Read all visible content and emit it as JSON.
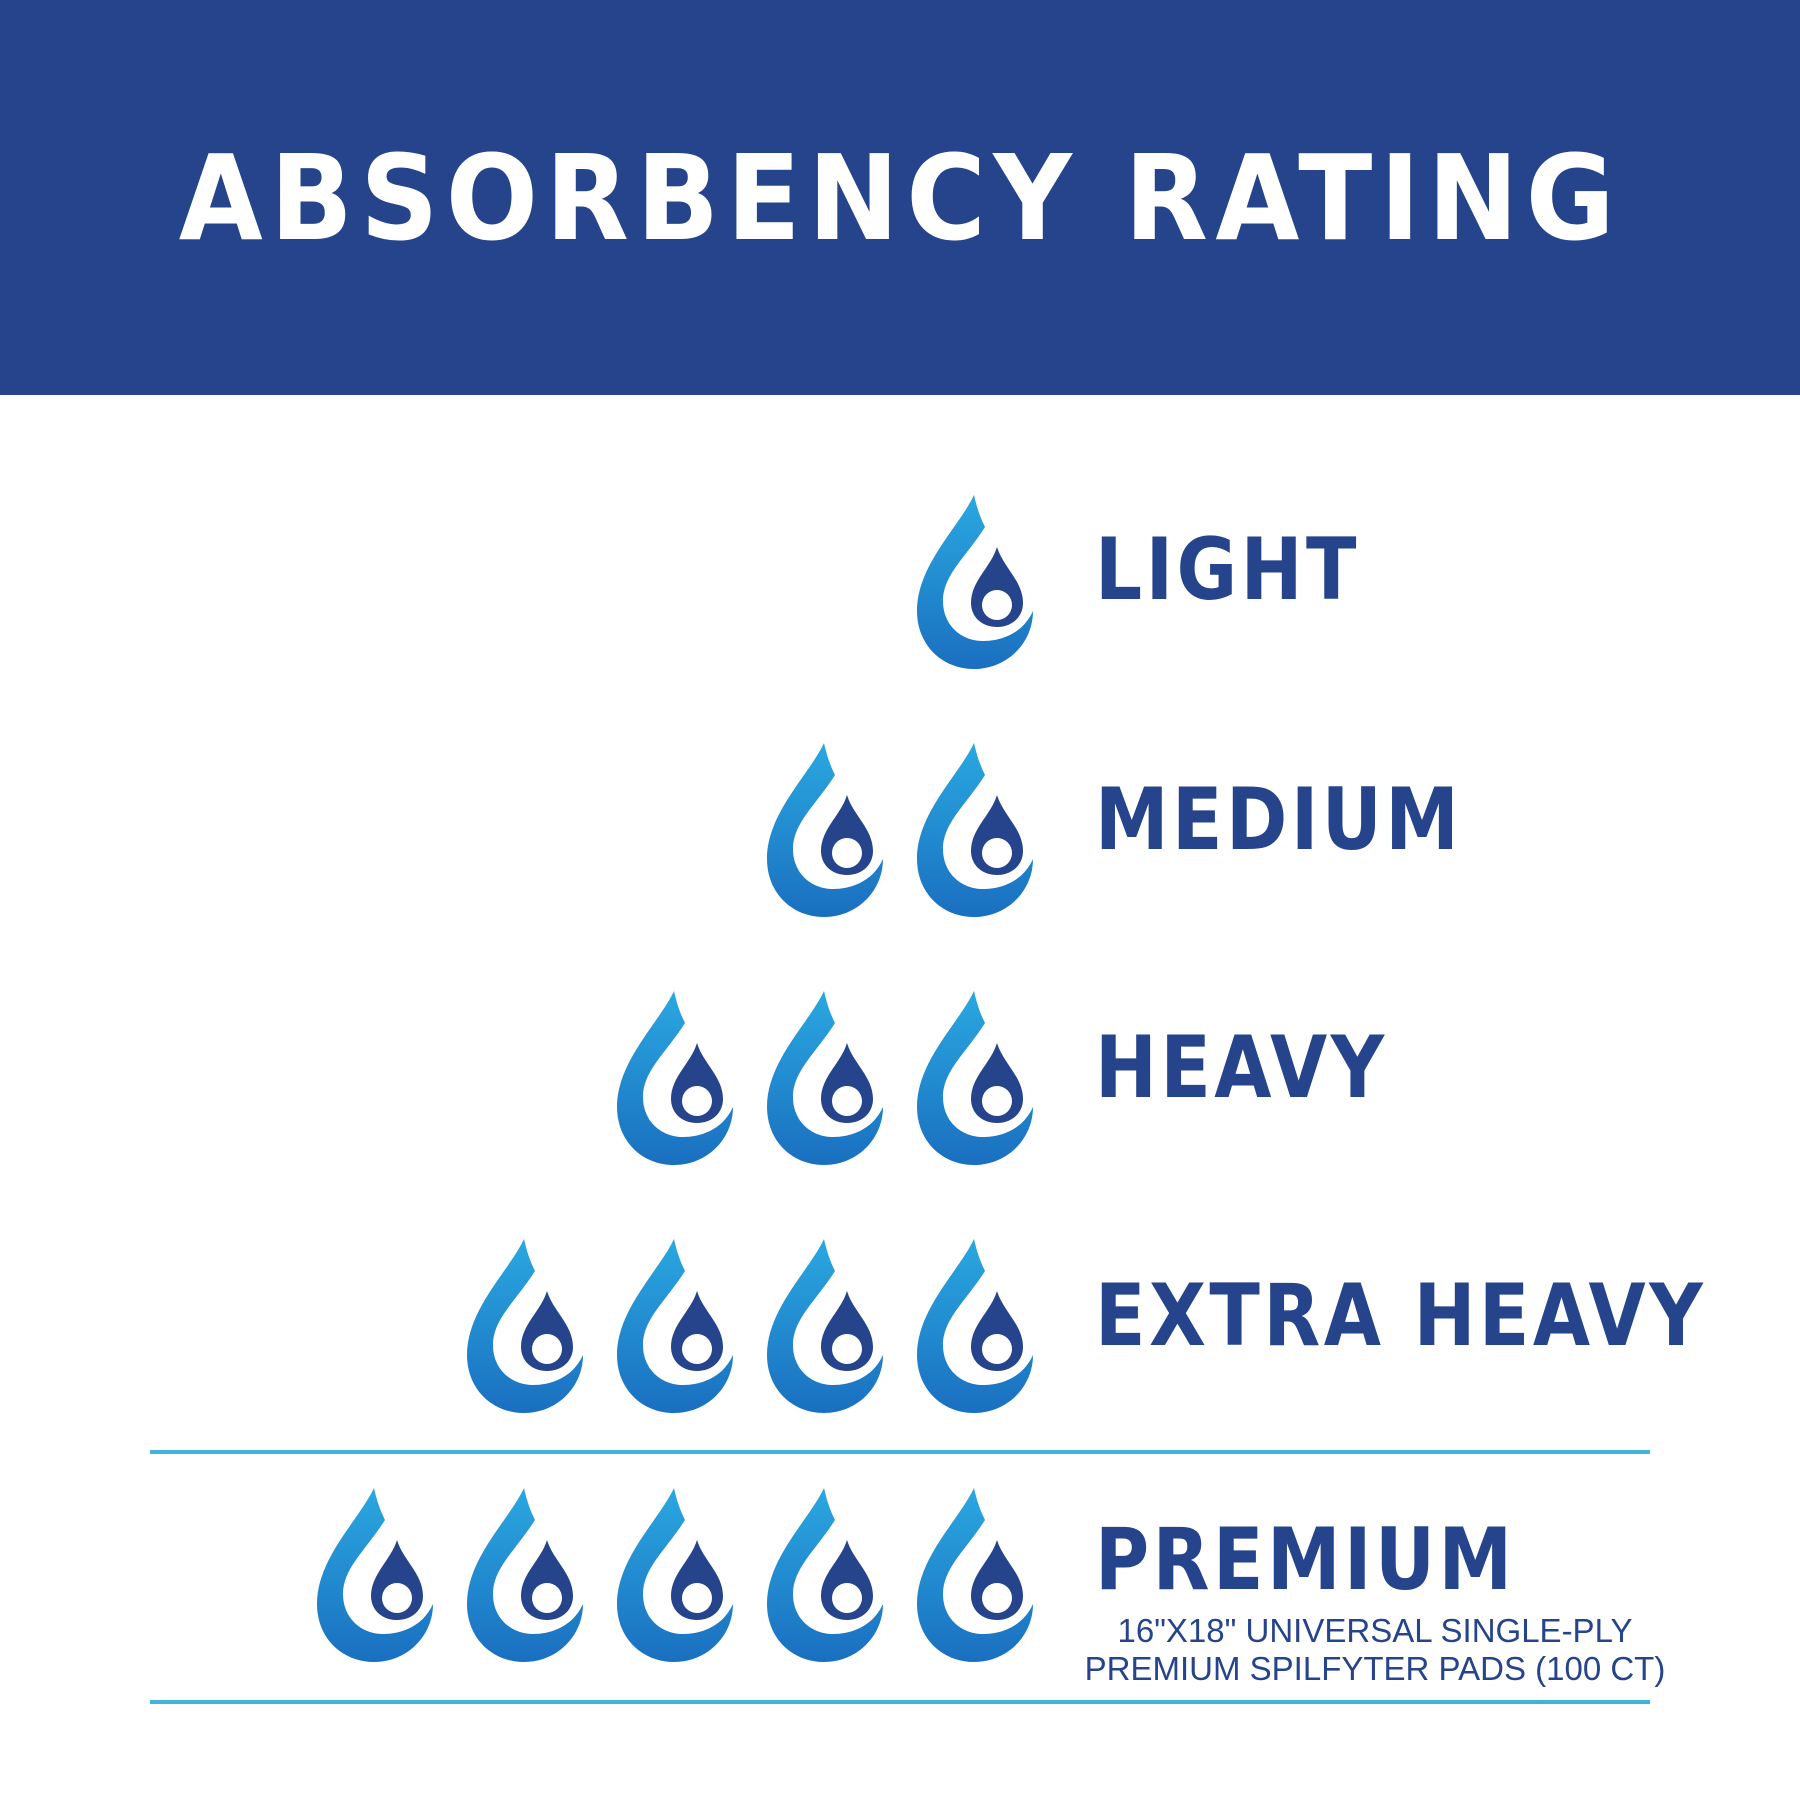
{
  "header": {
    "title": "ABSORBENCY RATING"
  },
  "colors": {
    "header_bg": "#26448b",
    "label": "#26448b",
    "drop_light": "#2aa8e0",
    "drop_dark": "#1a6fc0",
    "inner_drop": "#26448b",
    "rule": "#3fb3db"
  },
  "icon": "water-drop-icon",
  "ratings": [
    {
      "label": "LIGHT",
      "drops": 1
    },
    {
      "label": "MEDIUM",
      "drops": 2
    },
    {
      "label": "HEAVY",
      "drops": 3
    },
    {
      "label": "EXTRA HEAVY",
      "drops": 4
    },
    {
      "label": "PREMIUM",
      "drops": 5
    }
  ],
  "highlight": {
    "line1": "16\"X18\" UNIVERSAL SINGLE-PLY",
    "line2": "PREMIUM SPILFYTER PADS (100 CT)"
  }
}
